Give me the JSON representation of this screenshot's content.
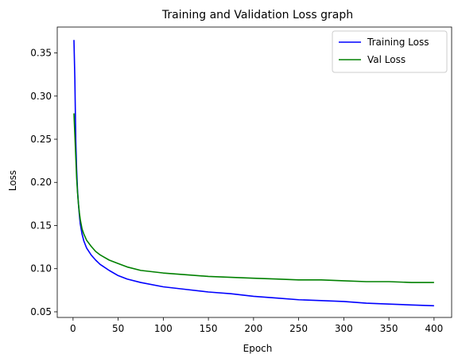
{
  "chart_data": {
    "type": "line",
    "title": "Training and Validation Loss graph",
    "xlabel": "Epoch",
    "ylabel": "Loss",
    "xlim": [
      -17.5,
      419.5
    ],
    "ylim": [
      0.0435,
      0.38
    ],
    "xticks": [
      0,
      50,
      100,
      150,
      200,
      250,
      300,
      350,
      400
    ],
    "xtick_labels": [
      "0",
      "50",
      "100",
      "150",
      "200",
      "250",
      "300",
      "350",
      "400"
    ],
    "yticks": [
      0.05,
      0.1,
      0.15,
      0.2,
      0.25,
      0.3,
      0.35
    ],
    "ytick_labels": [
      "0.05",
      "0.10",
      "0.15",
      "0.20",
      "0.25",
      "0.30",
      "0.35"
    ],
    "grid": false,
    "legend_position": "upper right",
    "series": [
      {
        "name": "Training Loss",
        "color": "#0000ff",
        "x": [
          1,
          2,
          3,
          4,
          5,
          6,
          7,
          8,
          10,
          12,
          15,
          20,
          25,
          30,
          40,
          50,
          60,
          75,
          100,
          125,
          150,
          175,
          200,
          225,
          250,
          275,
          300,
          325,
          350,
          375,
          400
        ],
        "y": [
          0.365,
          0.32,
          0.25,
          0.215,
          0.19,
          0.175,
          0.162,
          0.152,
          0.14,
          0.132,
          0.124,
          0.116,
          0.11,
          0.105,
          0.098,
          0.092,
          0.088,
          0.084,
          0.079,
          0.076,
          0.073,
          0.071,
          0.068,
          0.066,
          0.064,
          0.063,
          0.062,
          0.06,
          0.059,
          0.058,
          0.057
        ]
      },
      {
        "name": "Val Loss",
        "color": "#008000",
        "x": [
          1,
          2,
          3,
          4,
          5,
          6,
          7,
          8,
          10,
          12,
          15,
          20,
          25,
          30,
          40,
          50,
          60,
          75,
          100,
          125,
          150,
          175,
          200,
          225,
          250,
          275,
          300,
          325,
          350,
          375,
          400
        ],
        "y": [
          0.28,
          0.255,
          0.23,
          0.205,
          0.188,
          0.175,
          0.165,
          0.157,
          0.146,
          0.14,
          0.133,
          0.126,
          0.12,
          0.116,
          0.11,
          0.106,
          0.102,
          0.098,
          0.095,
          0.093,
          0.091,
          0.09,
          0.089,
          0.088,
          0.087,
          0.087,
          0.086,
          0.085,
          0.085,
          0.084,
          0.084
        ]
      }
    ]
  }
}
